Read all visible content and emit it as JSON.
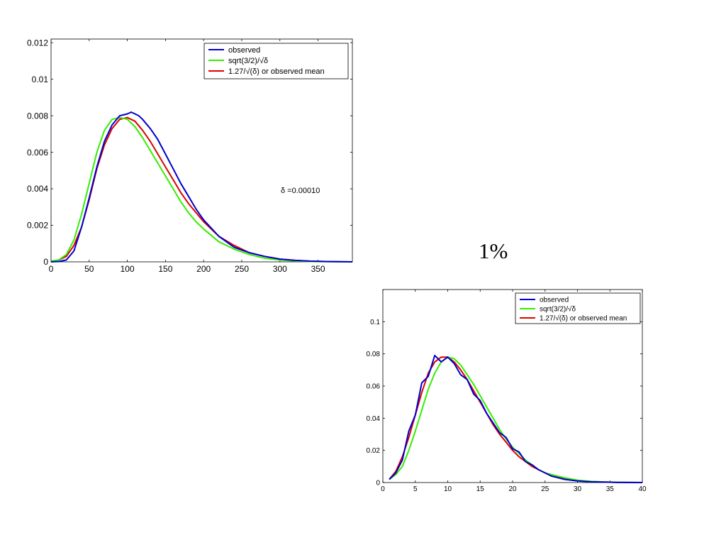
{
  "overlay_text": "1%",
  "chart_data": [
    {
      "type": "line",
      "xlim": [
        0,
        395
      ],
      "ylim": [
        0,
        0.0122
      ],
      "xticks": [
        0,
        50,
        100,
        150,
        200,
        250,
        300,
        350
      ],
      "yticks": [
        0,
        0.002,
        0.004,
        0.006,
        0.008,
        0.01,
        0.012
      ],
      "xtick_labels": [
        "0",
        "50",
        "100",
        "150",
        "200",
        "250",
        "300",
        "350"
      ],
      "ytick_labels": [
        "0",
        "0.002",
        "0.004",
        "0.006",
        "0.008",
        "0.01",
        "0.012"
      ],
      "grid": false,
      "legend_position": "top-right",
      "annotation": "δ =0.00010",
      "series": [
        {
          "name": "observed",
          "color": "#0000cc",
          "x": [
            0,
            10,
            20,
            30,
            40,
            50,
            60,
            70,
            80,
            90,
            100,
            105,
            110,
            115,
            120,
            130,
            140,
            150,
            160,
            170,
            180,
            190,
            200,
            220,
            240,
            260,
            280,
            300,
            320,
            340,
            360,
            395
          ],
          "y": [
            0,
            2e-05,
            0.0001,
            0.0006,
            0.0019,
            0.0035,
            0.0052,
            0.0066,
            0.0075,
            0.008,
            0.0081,
            0.0082,
            0.0081,
            0.008,
            0.0078,
            0.0073,
            0.0067,
            0.0059,
            0.0051,
            0.0043,
            0.0036,
            0.0029,
            0.0023,
            0.0014,
            0.0008,
            0.0005,
            0.0003,
            0.00015,
            8e-05,
            4e-05,
            2e-05,
            0
          ]
        },
        {
          "name": "sqrt(3/2)/√δ",
          "color": "#33ee00",
          "x": [
            0,
            10,
            20,
            30,
            40,
            50,
            60,
            70,
            80,
            90,
            100,
            110,
            120,
            130,
            140,
            150,
            160,
            170,
            180,
            190,
            200,
            220,
            240,
            260,
            280,
            300,
            320,
            340,
            360,
            395
          ],
          "y": [
            5e-05,
            0.0001,
            0.0004,
            0.0012,
            0.0026,
            0.0043,
            0.006,
            0.0072,
            0.0078,
            0.0079,
            0.0078,
            0.0074,
            0.0068,
            0.0061,
            0.0054,
            0.0047,
            0.004,
            0.0033,
            0.0027,
            0.0022,
            0.0018,
            0.0011,
            0.0007,
            0.0004,
            0.0002,
            0.0001,
            5e-05,
            2e-05,
            1e-05,
            0
          ]
        },
        {
          "name": "1.27/√(δ) or observed mean",
          "color": "#dd0000",
          "x": [
            0,
            10,
            20,
            30,
            40,
            50,
            60,
            70,
            80,
            90,
            100,
            110,
            120,
            130,
            140,
            150,
            160,
            170,
            180,
            190,
            200,
            220,
            240,
            260,
            280,
            300,
            320,
            340,
            360,
            395
          ],
          "y": [
            0,
            0.0001,
            0.0003,
            0.0009,
            0.0019,
            0.0034,
            0.0051,
            0.0064,
            0.0073,
            0.0078,
            0.0079,
            0.0077,
            0.0072,
            0.0066,
            0.0059,
            0.0052,
            0.0045,
            0.0038,
            0.0032,
            0.0027,
            0.0022,
            0.0014,
            0.0009,
            0.0005,
            0.0003,
            0.00015,
            8e-05,
            4e-05,
            2e-05,
            0
          ]
        }
      ]
    },
    {
      "type": "line",
      "xlim": [
        0,
        40
      ],
      "ylim": [
        0,
        0.12
      ],
      "xticks": [
        0,
        5,
        10,
        15,
        20,
        25,
        30,
        35,
        40
      ],
      "yticks": [
        0,
        0.02,
        0.04,
        0.06,
        0.08,
        0.1
      ],
      "xtick_labels": [
        "0",
        "5",
        "10",
        "15",
        "20",
        "25",
        "30",
        "35",
        "40"
      ],
      "ytick_labels": [
        "0",
        "0.02",
        "0.04",
        "0.06",
        "0.08",
        "0.1"
      ],
      "grid": false,
      "legend_position": "top-right",
      "series": [
        {
          "name": "observed",
          "color": "#0000cc",
          "x": [
            1,
            2,
            3,
            4,
            5,
            6,
            7,
            8,
            9,
            10,
            11,
            12,
            13,
            14,
            15,
            16,
            17,
            18,
            19,
            20,
            21,
            22,
            23,
            24,
            25,
            26,
            27,
            28,
            29,
            30,
            32,
            34,
            36,
            38,
            40
          ],
          "y": [
            0.002,
            0.006,
            0.014,
            0.032,
            0.042,
            0.062,
            0.066,
            0.079,
            0.075,
            0.078,
            0.074,
            0.067,
            0.064,
            0.055,
            0.051,
            0.043,
            0.037,
            0.031,
            0.028,
            0.021,
            0.019,
            0.013,
            0.011,
            0.008,
            0.006,
            0.004,
            0.003,
            0.002,
            0.0015,
            0.001,
            0.0005,
            0.0003,
            0.0001,
            5e-05,
            0
          ]
        },
        {
          "name": "sqrt(3/2)/√δ",
          "color": "#33ee00",
          "x": [
            1,
            2,
            3,
            4,
            5,
            6,
            7,
            8,
            9,
            10,
            11,
            12,
            13,
            14,
            15,
            16,
            17,
            18,
            19,
            20,
            21,
            22,
            23,
            24,
            25,
            26,
            28,
            30,
            32,
            34,
            36,
            38,
            40
          ],
          "y": [
            0.002,
            0.005,
            0.01,
            0.02,
            0.032,
            0.045,
            0.058,
            0.068,
            0.075,
            0.078,
            0.077,
            0.073,
            0.067,
            0.061,
            0.054,
            0.047,
            0.04,
            0.033,
            0.027,
            0.022,
            0.018,
            0.014,
            0.011,
            0.008,
            0.006,
            0.005,
            0.003,
            0.0015,
            0.0008,
            0.0004,
            0.0002,
            0.0001,
            0
          ]
        },
        {
          "name": "1.27/√(δ) or observed mean",
          "color": "#dd0000",
          "x": [
            1,
            2,
            3,
            4,
            5,
            6,
            7,
            8,
            9,
            10,
            11,
            12,
            13,
            14,
            15,
            16,
            17,
            18,
            19,
            20,
            21,
            22,
            23,
            24,
            25,
            26,
            28,
            30,
            32,
            34,
            36,
            38,
            40
          ],
          "y": [
            0.002,
            0.007,
            0.016,
            0.028,
            0.042,
            0.056,
            0.068,
            0.075,
            0.078,
            0.078,
            0.075,
            0.07,
            0.064,
            0.057,
            0.05,
            0.043,
            0.036,
            0.03,
            0.025,
            0.02,
            0.016,
            0.013,
            0.01,
            0.008,
            0.006,
            0.004,
            0.0025,
            0.0013,
            0.0007,
            0.0003,
            0.0001,
            5e-05,
            0
          ]
        }
      ]
    }
  ]
}
